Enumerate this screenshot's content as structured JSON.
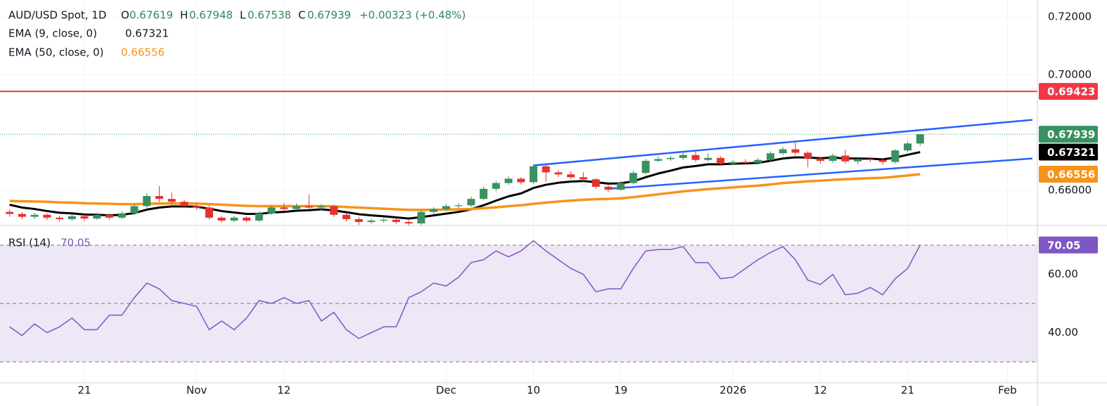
{
  "chart_data": [
    {
      "type": "candlestick",
      "title": "AUD/USD Spot, 1D",
      "ohlc_labels": [
        "O",
        "H",
        "L",
        "C"
      ],
      "change_label": "+0.00323 (+0.48%)",
      "up_color": "#3a9160",
      "down_color": "#e5322d",
      "open": [
        0.6525,
        0.6518,
        0.6508,
        0.6515,
        0.6505,
        0.65,
        0.651,
        0.6502,
        0.6515,
        0.6505,
        0.652,
        0.6545,
        0.658,
        0.657,
        0.656,
        0.6545,
        0.654,
        0.6505,
        0.6495,
        0.6505,
        0.6495,
        0.652,
        0.654,
        0.6535,
        0.6545,
        0.654,
        0.6545,
        0.6515,
        0.65,
        0.649,
        0.6495,
        0.6498,
        0.649,
        0.6485,
        0.6525,
        0.6535,
        0.6545,
        0.6548,
        0.657,
        0.6605,
        0.6625,
        0.664,
        0.6628,
        0.6683,
        0.6662,
        0.6655,
        0.6645,
        0.6638,
        0.6612,
        0.6602,
        0.6625,
        0.666,
        0.6702,
        0.6708,
        0.6712,
        0.6722,
        0.6705,
        0.6712,
        0.6692,
        0.6698,
        0.6695,
        0.6705,
        0.6728,
        0.6742,
        0.673,
        0.671,
        0.6702,
        0.672,
        0.67,
        0.6708,
        0.6705,
        0.6698,
        0.6738,
        0.67619
      ],
      "high": [
        0.6533,
        0.6524,
        0.6523,
        0.652,
        0.6512,
        0.6518,
        0.6516,
        0.6522,
        0.652,
        0.6527,
        0.6552,
        0.659,
        0.6615,
        0.6592,
        0.6566,
        0.6552,
        0.6548,
        0.6512,
        0.6512,
        0.651,
        0.6528,
        0.6548,
        0.6555,
        0.6555,
        0.6585,
        0.6552,
        0.655,
        0.6522,
        0.6508,
        0.6502,
        0.6504,
        0.6503,
        0.6496,
        0.653,
        0.6542,
        0.6552,
        0.6556,
        0.6578,
        0.6612,
        0.6632,
        0.6648,
        0.6645,
        0.669,
        0.6688,
        0.667,
        0.6665,
        0.6662,
        0.6642,
        0.6618,
        0.6632,
        0.6668,
        0.6708,
        0.6718,
        0.672,
        0.673,
        0.674,
        0.6728,
        0.6718,
        0.6705,
        0.6708,
        0.6712,
        0.6735,
        0.675,
        0.6765,
        0.6735,
        0.6715,
        0.6728,
        0.674,
        0.6712,
        0.6715,
        0.671,
        0.6742,
        0.677,
        0.67948
      ],
      "low": [
        0.6508,
        0.65,
        0.65,
        0.6497,
        0.6492,
        0.6495,
        0.6493,
        0.6497,
        0.6498,
        0.65,
        0.6515,
        0.654,
        0.656,
        0.6552,
        0.6538,
        0.6532,
        0.6498,
        0.6488,
        0.649,
        0.6489,
        0.649,
        0.6515,
        0.6528,
        0.653,
        0.6532,
        0.653,
        0.6508,
        0.6492,
        0.648,
        0.6484,
        0.6488,
        0.6484,
        0.6478,
        0.648,
        0.6518,
        0.6528,
        0.6538,
        0.6542,
        0.6565,
        0.6598,
        0.6618,
        0.662,
        0.6622,
        0.663,
        0.6645,
        0.6638,
        0.663,
        0.6605,
        0.6595,
        0.6598,
        0.662,
        0.6655,
        0.6698,
        0.6702,
        0.6705,
        0.6698,
        0.67,
        0.6685,
        0.6688,
        0.669,
        0.6688,
        0.67,
        0.6722,
        0.6722,
        0.668,
        0.6692,
        0.6695,
        0.6692,
        0.669,
        0.6698,
        0.6688,
        0.6692,
        0.6732,
        0.67538
      ],
      "close": [
        0.6518,
        0.6508,
        0.6515,
        0.6505,
        0.65,
        0.651,
        0.6502,
        0.6515,
        0.6505,
        0.652,
        0.6545,
        0.658,
        0.657,
        0.656,
        0.6545,
        0.654,
        0.6505,
        0.6495,
        0.6505,
        0.6495,
        0.652,
        0.654,
        0.6535,
        0.6545,
        0.654,
        0.6545,
        0.6515,
        0.65,
        0.649,
        0.6495,
        0.6498,
        0.649,
        0.6485,
        0.6525,
        0.6535,
        0.6545,
        0.6548,
        0.657,
        0.6605,
        0.6625,
        0.664,
        0.6628,
        0.6683,
        0.6662,
        0.6655,
        0.6645,
        0.6638,
        0.6612,
        0.6602,
        0.6625,
        0.666,
        0.6702,
        0.6708,
        0.6712,
        0.6722,
        0.6705,
        0.6712,
        0.6692,
        0.6698,
        0.6695,
        0.6705,
        0.6728,
        0.6742,
        0.673,
        0.671,
        0.6702,
        0.672,
        0.67,
        0.6708,
        0.6705,
        0.6698,
        0.6738,
        0.6762,
        0.67939
      ],
      "series": [
        {
          "name": "EMA (9, close, 0)",
          "color": "#000000",
          "values": [
            0.655,
            0.654,
            0.6535,
            0.6528,
            0.6522,
            0.652,
            0.6516,
            0.6515,
            0.6513,
            0.6515,
            0.6521,
            0.6533,
            0.654,
            0.6544,
            0.6544,
            0.6543,
            0.6536,
            0.6528,
            0.6523,
            0.6518,
            0.6518,
            0.6523,
            0.6525,
            0.6529,
            0.6531,
            0.6534,
            0.653,
            0.6524,
            0.6517,
            0.6513,
            0.651,
            0.6506,
            0.6502,
            0.6507,
            0.6513,
            0.6519,
            0.6525,
            0.6534,
            0.6548,
            0.6564,
            0.6579,
            0.6589,
            0.6608,
            0.6619,
            0.6626,
            0.663,
            0.6632,
            0.6628,
            0.6623,
            0.6624,
            0.6631,
            0.6645,
            0.6658,
            0.6668,
            0.6679,
            0.6684,
            0.669,
            0.669,
            0.6692,
            0.6693,
            0.6695,
            0.6702,
            0.671,
            0.6714,
            0.6713,
            0.6711,
            0.6713,
            0.671,
            0.671,
            0.6709,
            0.6707,
            0.6713,
            0.6723,
            0.67321
          ]
        },
        {
          "name": "EMA (50, close, 0)",
          "color": "#f7931a",
          "values": [
            0.6563,
            0.6562,
            0.6561,
            0.656,
            0.6558,
            0.6557,
            0.6555,
            0.6554,
            0.6553,
            0.6552,
            0.6552,
            0.6553,
            0.6554,
            0.6554,
            0.6554,
            0.6554,
            0.6552,
            0.655,
            0.6548,
            0.6546,
            0.6545,
            0.6545,
            0.6545,
            0.6545,
            0.6545,
            0.6545,
            0.6544,
            0.6542,
            0.654,
            0.6538,
            0.6536,
            0.6534,
            0.6532,
            0.6532,
            0.6532,
            0.6533,
            0.6534,
            0.6535,
            0.6538,
            0.6541,
            0.6545,
            0.6548,
            0.6553,
            0.6557,
            0.6561,
            0.6564,
            0.6567,
            0.6569,
            0.657,
            0.6572,
            0.6576,
            0.6581,
            0.6586,
            0.6591,
            0.6596,
            0.66,
            0.6604,
            0.6607,
            0.661,
            0.6613,
            0.6616,
            0.662,
            0.6625,
            0.6628,
            0.6631,
            0.6633,
            0.6636,
            0.6638,
            0.664,
            0.6642,
            0.6643,
            0.6647,
            0.6651,
            0.66556
          ]
        }
      ],
      "hline": {
        "value": 0.69423,
        "color": "#f23645"
      },
      "channel_color": "#2962ff",
      "channel_lines": [
        {
          "x": [
            42,
            82
          ],
          "values": [
            0.6686,
            0.6844
          ]
        },
        {
          "x": [
            48,
            82
          ],
          "values": [
            0.6605,
            0.671
          ]
        }
      ],
      "xlim": [
        -0.77,
        82.4
      ],
      "xticks": [
        {
          "value": 6,
          "label": "21"
        },
        {
          "value": 15,
          "label": "Nov"
        },
        {
          "value": 22,
          "label": "12"
        },
        {
          "value": 35,
          "label": "Dec"
        },
        {
          "value": 42,
          "label": "10"
        },
        {
          "value": 49,
          "label": "19"
        },
        {
          "value": 58,
          "label": "2026"
        },
        {
          "value": 65,
          "label": "12"
        },
        {
          "value": 72,
          "label": "21"
        },
        {
          "value": 80,
          "label": "Feb"
        }
      ],
      "ylim": [
        0.6478,
        0.7259
      ],
      "yticks": [
        {
          "value": 0.66,
          "label": "0.66000"
        },
        {
          "value": 0.7,
          "label": "0.70000"
        },
        {
          "value": 0.72,
          "label": "0.72000"
        }
      ],
      "grid": true
    },
    {
      "type": "line",
      "series": [
        {
          "name": "RSI (14)",
          "color": "#7e57c2",
          "values": [
            42,
            39,
            43,
            40,
            42,
            45,
            41,
            41,
            46,
            46,
            52,
            57,
            55,
            51,
            50,
            49,
            41,
            44,
            41,
            45,
            51,
            50,
            52,
            50,
            51,
            44,
            47,
            41,
            38,
            40,
            42,
            42,
            52,
            54,
            57,
            56,
            59,
            64,
            65,
            68,
            66,
            68,
            71.5,
            68,
            65,
            62,
            60,
            54,
            55,
            55,
            62,
            68,
            68.5,
            68.5,
            69.5,
            64,
            64,
            58.5,
            59,
            62,
            65,
            67.5,
            69.5,
            65,
            58,
            56.5,
            60,
            53,
            53.5,
            55.5,
            53,
            58.5,
            62,
            70.05
          ]
        }
      ],
      "levels": [
        30,
        50,
        70
      ],
      "band_color": "#ede7f6",
      "ylim": [
        22.8,
        76.5
      ],
      "yticks": [
        {
          "value": 40,
          "label": "40.00"
        },
        {
          "value": 60,
          "label": "60.00"
        }
      ]
    }
  ]
}
